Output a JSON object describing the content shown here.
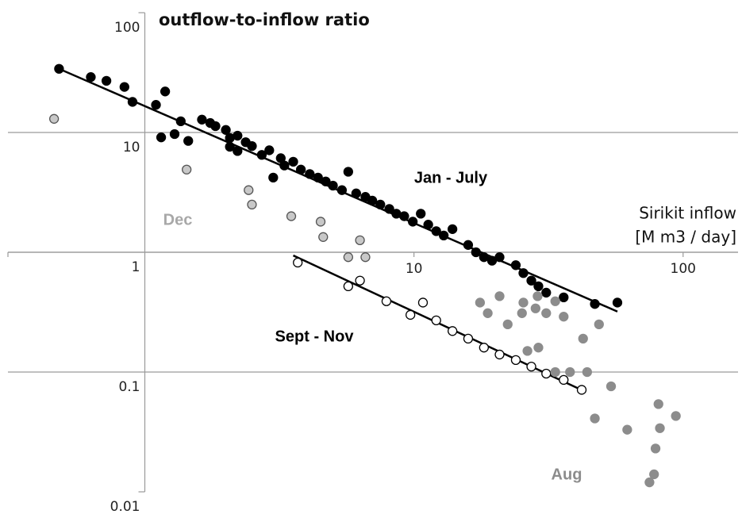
{
  "chart_data": {
    "type": "scatter",
    "title": "outflow-to-inflow ratio",
    "x_label": [
      "Sirikit inflow",
      "[M m3 / day]"
    ],
    "log_x": true,
    "log_y": true,
    "xlim": [
      0.31,
      160
    ],
    "ylim": [
      0.01,
      100
    ],
    "xticks": [
      10,
      100
    ],
    "yticks": [
      0.01,
      0.1,
      1,
      10,
      100
    ],
    "grid": true,
    "series": [
      {
        "name": "Jan - July",
        "color": "#000000",
        "stroke": "#000000",
        "x": [
          0.48,
          0.63,
          0.72,
          0.84,
          0.9,
          1.1,
          1.19,
          1.15,
          1.29,
          1.36,
          1.45,
          1.63,
          1.75,
          1.83,
          2.0,
          2.07,
          2.21,
          2.37,
          2.5,
          2.07,
          2.21,
          2.72,
          2.9,
          3.2,
          3.3,
          3.56,
          3.8,
          4.1,
          4.4,
          3.0,
          4.7,
          5.0,
          5.4,
          5.7,
          6.1,
          6.6,
          7.0,
          7.5,
          8.1,
          8.6,
          9.2,
          9.9,
          10.6,
          11.3,
          12.1,
          12.9,
          13.9,
          15.9,
          17,
          18.2,
          19.5,
          20.8,
          23.9,
          25.5,
          27.3,
          29,
          31,
          36,
          47,
          57
        ],
        "values": [
          34,
          29,
          27,
          24,
          18,
          17,
          22,
          9.1,
          9.7,
          12.4,
          8.5,
          12.8,
          12,
          11.3,
          10.5,
          9.0,
          9.4,
          8.3,
          7.7,
          7.6,
          7.0,
          6.5,
          7.1,
          6.1,
          5.3,
          5.7,
          4.9,
          4.5,
          4.2,
          4.2,
          3.9,
          3.6,
          3.3,
          4.7,
          3.1,
          2.9,
          2.7,
          2.5,
          2.3,
          2.1,
          2.0,
          1.8,
          2.1,
          1.7,
          1.5,
          1.38,
          1.56,
          1.15,
          1.0,
          0.91,
          0.85,
          0.91,
          0.78,
          0.67,
          0.58,
          0.52,
          0.46,
          0.42,
          0.37,
          0.38
        ]
      },
      {
        "name": "Dec",
        "color": "#c8c8c8",
        "stroke": "#555555",
        "x": [
          0.46,
          1.43,
          2.43,
          2.5,
          3.5,
          4.5,
          4.6,
          5.7,
          6.3,
          6.6
        ],
        "values": [
          13,
          4.9,
          3.3,
          2.5,
          2.0,
          1.8,
          1.34,
          0.91,
          1.26,
          0.91
        ]
      },
      {
        "name": "Sept - Nov",
        "color": "#ffffff",
        "stroke": "#000000",
        "x": [
          3.7,
          5.7,
          6.3,
          7.9,
          9.7,
          10.8,
          12.1,
          13.9,
          15.9,
          18.2,
          20.8,
          23.9,
          27.3,
          31,
          36,
          42
        ],
        "values": [
          0.82,
          0.52,
          0.58,
          0.39,
          0.3,
          0.38,
          0.27,
          0.22,
          0.19,
          0.16,
          0.14,
          0.126,
          0.111,
          0.097,
          0.086,
          0.071
        ]
      },
      {
        "name": "Aug",
        "color": "#8c8c8c",
        "stroke": "#8c8c8c",
        "x": [
          17.6,
          20.8,
          25.5,
          28.8,
          33.5,
          18.8,
          22.3,
          25.2,
          28.3,
          31,
          36,
          26.4,
          29,
          33.5,
          38,
          42.5,
          48.7,
          44,
          54,
          47,
          62,
          81,
          82,
          79,
          94,
          78,
          75
        ],
        "values": [
          0.38,
          0.43,
          0.38,
          0.43,
          0.39,
          0.31,
          0.25,
          0.31,
          0.34,
          0.31,
          0.29,
          0.15,
          0.16,
          0.1,
          0.1,
          0.19,
          0.25,
          0.1,
          0.076,
          0.041,
          0.033,
          0.054,
          0.034,
          0.023,
          0.043,
          0.014,
          0.012
        ]
      }
    ],
    "trend_lines": [
      {
        "color": "#000000",
        "x": [
          0.48,
          57
        ],
        "values": [
          34,
          0.32
        ]
      },
      {
        "color": "#000000",
        "x": [
          3.56,
          41.9
        ],
        "values": [
          0.94,
          0.071
        ]
      }
    ]
  }
}
